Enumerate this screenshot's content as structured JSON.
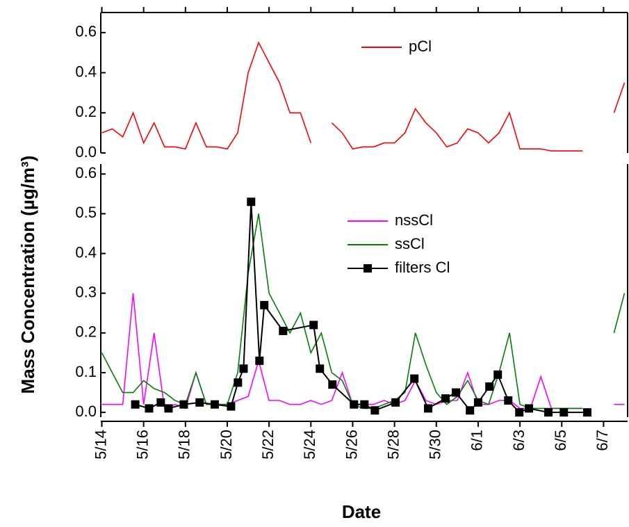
{
  "chart_data": [
    {
      "type": "line",
      "xlim": [
        -0.05,
        25.15
      ],
      "ylim": [
        0,
        0.7
      ],
      "yticks": [
        {
          "value": 0,
          "label": "0.0"
        },
        0.2,
        0.4,
        0.6
      ],
      "x": [
        0,
        0.5,
        1,
        1.5,
        2,
        2.5,
        3,
        3.5,
        4,
        4.5,
        5,
        5.5,
        6,
        6.5,
        7,
        7.5,
        8,
        8.5,
        9,
        9.5,
        10,
        10.5,
        11,
        11.5,
        12,
        12.5,
        13,
        13.5,
        14,
        14.5,
        15,
        15.5,
        16,
        16.5,
        17,
        17.5,
        18,
        18.5,
        19,
        19.5,
        20,
        20.5,
        21,
        21.5,
        22,
        22.5,
        23,
        23.5,
        24,
        24.5,
        25
      ],
      "series": [
        {
          "name": "pCl",
          "color": "#ff0000",
          "values": [
            0.1,
            0.12,
            0.08,
            0.2,
            0.05,
            0.15,
            0.03,
            0.03,
            0.02,
            0.15,
            0.03,
            0.03,
            0.02,
            0.1,
            0.4,
            0.55,
            0.45,
            0.35,
            0.2,
            0.2,
            0.05,
            null,
            0.15,
            0.1,
            0.02,
            0.03,
            0.03,
            0.05,
            0.05,
            0.1,
            0.22,
            0.15,
            0.1,
            0.03,
            0.05,
            0.12,
            0.1,
            0.05,
            0.1,
            0.2,
            0.02,
            0.02,
            0.02,
            0.01,
            0.01,
            0.01,
            0.01,
            null,
            null,
            0.2,
            0.35
          ]
        }
      ]
    },
    {
      "type": "line",
      "xlim": [
        -0.05,
        25.15
      ],
      "ylim": [
        -0.012,
        0.625
      ],
      "yticks": [
        {
          "value": 0,
          "label": "0.0"
        },
        0.1,
        0.2,
        0.3,
        0.4,
        0.5,
        0.6
      ],
      "xticks": [
        {
          "value": 0,
          "label": "5/14"
        },
        {
          "value": 2,
          "label": "5/16"
        },
        {
          "value": 4,
          "label": "5/18"
        },
        {
          "value": 6,
          "label": "5/20"
        },
        {
          "value": 8,
          "label": "5/22"
        },
        {
          "value": 10,
          "label": "5/24"
        },
        {
          "value": 12,
          "label": "5/26"
        },
        {
          "value": 14,
          "label": "5/28"
        },
        {
          "value": 16,
          "label": "5/30"
        },
        {
          "value": 18,
          "label": "6/1"
        },
        {
          "value": 20,
          "label": "6/3"
        },
        {
          "value": 22,
          "label": "6/5"
        },
        {
          "value": 24,
          "label": "6/7"
        }
      ],
      "x_label": "Date",
      "y_label": "Mass Concentration (µg/m³)",
      "x": [
        0,
        0.5,
        1,
        1.5,
        2,
        2.5,
        3,
        3.5,
        4,
        4.5,
        5,
        5.5,
        6,
        6.5,
        7,
        7.5,
        8,
        8.5,
        9,
        9.5,
        10,
        10.5,
        11,
        11.5,
        12,
        12.5,
        13,
        13.5,
        14,
        14.5,
        15,
        15.5,
        16,
        16.5,
        17,
        17.5,
        18,
        18.5,
        19,
        19.5,
        20,
        20.5,
        21,
        21.5,
        22,
        22.5,
        23,
        23.5,
        24,
        24.5,
        25
      ],
      "series": [
        {
          "name": "nssCl",
          "color": "#ff00ff",
          "values": [
            0.02,
            0.02,
            0.02,
            0.3,
            0.02,
            0.2,
            0.01,
            0.02,
            0.01,
            0.1,
            0.02,
            0.02,
            0.02,
            0.03,
            0.04,
            0.13,
            0.03,
            0.03,
            0.02,
            0.02,
            0.03,
            0.02,
            0.03,
            0.1,
            0.02,
            0.02,
            0.02,
            0.03,
            0.02,
            0.03,
            0.08,
            0.03,
            0.02,
            0.03,
            0.03,
            0.1,
            0.02,
            0.02,
            0.03,
            0.03,
            0.01,
            0.01,
            0.09,
            0.01,
            0.01,
            0.01,
            0.01,
            null,
            null,
            0.02,
            0.02
          ]
        },
        {
          "name": "ssCl",
          "color": "#008000",
          "values": [
            0.15,
            0.1,
            0.05,
            0.05,
            0.08,
            0.06,
            0.05,
            0.03,
            0.02,
            0.1,
            0.02,
            0.02,
            0.02,
            0.1,
            0.35,
            0.5,
            0.3,
            0.25,
            0.2,
            0.25,
            0.15,
            0.2,
            0.1,
            0.08,
            0.02,
            0.01,
            0.01,
            0.02,
            0.03,
            0.05,
            0.2,
            0.12,
            0.05,
            0.02,
            0.04,
            0.08,
            0.03,
            0.02,
            0.1,
            0.2,
            0.02,
            0.01,
            0.01,
            0.01,
            0.01,
            0.01,
            0.01,
            null,
            null,
            0.2,
            0.3
          ]
        },
        {
          "name": "filters Cl",
          "color": "#000000",
          "marker": "square",
          "x": [
            1.6,
            2.26,
            2.82,
            3.19,
            3.92,
            4.68,
            5.4,
            6.18,
            6.51,
            6.78,
            7.14,
            7.54,
            7.77,
            8.67,
            10.13,
            10.43,
            11.03,
            12.06,
            12.56,
            13.06,
            14.05,
            14.95,
            15.61,
            16.44,
            16.94,
            17.61,
            18.0,
            18.54,
            18.94,
            19.44,
            19.97,
            20.43,
            21.36,
            22.1,
            23.22
          ],
          "values": [
            0.02,
            0.01,
            0.025,
            0.01,
            0.02,
            0.025,
            0.02,
            0.015,
            0.075,
            0.11,
            0.53,
            0.13,
            0.27,
            0.205,
            0.22,
            0.11,
            0.07,
            0.02,
            0.02,
            0.005,
            0.025,
            0.085,
            0.01,
            0.035,
            0.05,
            0.005,
            0.025,
            0.065,
            0.095,
            0.03,
            0,
            0.01,
            0,
            0,
            0
          ]
        }
      ]
    }
  ]
}
